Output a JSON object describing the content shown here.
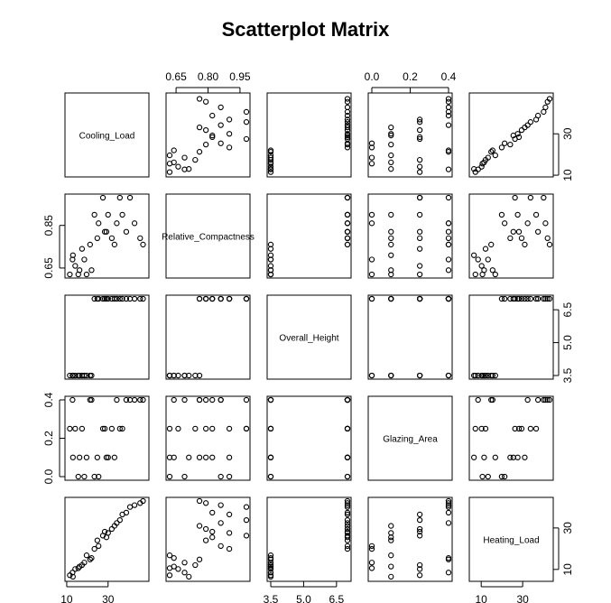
{
  "chart_data": {
    "type": "scatter",
    "title": "Scatterplot Matrix",
    "variables": [
      "Cooling_Load",
      "Relative_Compactness",
      "Overall_Height",
      "Glazing_Area",
      "Heating_Load"
    ],
    "axes": {
      "Cooling_Load": {
        "range": [
          10.9,
          48.0
        ],
        "ticks": [
          10,
          30
        ]
      },
      "Relative_Compactness": {
        "range": [
          0.62,
          0.98
        ],
        "ticks": [
          0.65,
          0.8,
          0.95
        ],
        "tick_labels_left": [
          "0.65",
          "0.85"
        ],
        "tick_labels_top": [
          "0.65",
          "0.80",
          "0.95"
        ]
      },
      "Overall_Height": {
        "range": [
          3.5,
          7.0
        ],
        "ticks": [
          3.5,
          5.0,
          6.5
        ]
      },
      "Glazing_Area": {
        "range": [
          0.0,
          0.4
        ],
        "ticks": [
          0.0,
          0.2,
          0.4
        ]
      },
      "Heating_Load": {
        "range": [
          6.0,
          43.0
        ],
        "ticks": [
          10,
          30
        ]
      }
    },
    "tick_labels": {
      "top_relative_compactness": [
        "0.65",
        "0.80",
        "0.95"
      ],
      "top_glazing_area": [
        "0.0",
        "0.2",
        "0.4"
      ],
      "left_relative_compactness": [
        "0.65",
        "0.85"
      ],
      "left_glazing_area": [
        "0.0",
        "0.2",
        "0.4"
      ],
      "right_cooling_load": [
        "10",
        "30"
      ],
      "right_overall_height": [
        "3.5",
        "5.0",
        "6.5"
      ],
      "right_heating_load": [
        "10",
        "30"
      ],
      "bottom_cooling_load": [
        "10",
        "30"
      ],
      "bottom_overall_height": [
        "3.5",
        "5.0",
        "6.5"
      ],
      "bottom_heating_load": [
        "10",
        "30"
      ]
    },
    "diagonal_labels": [
      "Cooling_Load",
      "Relative_Compactness",
      "Overall_Height",
      "Glazing_Area",
      "Heating_Load"
    ],
    "observations": [
      [
        15.6,
        0.62,
        3.5,
        0.0,
        10.6
      ],
      [
        16.2,
        0.64,
        3.5,
        0.1,
        11.4
      ],
      [
        14.1,
        0.66,
        3.5,
        0.25,
        10.2
      ],
      [
        12.8,
        0.69,
        3.5,
        0.4,
        8.5
      ],
      [
        13.0,
        0.71,
        3.5,
        0.1,
        6.5
      ],
      [
        17.4,
        0.74,
        3.5,
        0.25,
        12.1
      ],
      [
        21.3,
        0.76,
        3.5,
        0.4,
        14.8
      ],
      [
        11.5,
        0.62,
        3.5,
        0.25,
        7.2
      ],
      [
        18.5,
        0.69,
        3.5,
        0.0,
        13.3
      ],
      [
        22.0,
        0.64,
        3.5,
        0.4,
        15.5
      ],
      [
        24.8,
        0.79,
        7.0,
        0.1,
        24.0
      ],
      [
        28.4,
        0.82,
        7.0,
        0.25,
        28.2
      ],
      [
        34.2,
        0.86,
        7.0,
        0.4,
        32.4
      ],
      [
        36.9,
        0.9,
        7.0,
        0.25,
        36.5
      ],
      [
        40.6,
        0.98,
        7.0,
        0.4,
        40.1
      ],
      [
        33.1,
        0.76,
        7.0,
        0.1,
        31.0
      ],
      [
        25.4,
        0.86,
        7.0,
        0.0,
        21.3
      ],
      [
        38.8,
        0.82,
        7.0,
        0.4,
        37.4
      ],
      [
        45.5,
        0.79,
        7.0,
        0.4,
        42.0
      ],
      [
        30.0,
        0.9,
        7.0,
        0.1,
        27.6
      ],
      [
        27.5,
        0.98,
        7.0,
        0.25,
        26.3
      ],
      [
        42.8,
        0.86,
        7.0,
        0.4,
        41.0
      ],
      [
        31.8,
        0.79,
        7.0,
        0.25,
        29.5
      ],
      [
        19.6,
        0.62,
        3.5,
        0.1,
        16.8
      ],
      [
        46.9,
        0.76,
        7.0,
        0.4,
        43.0
      ],
      [
        29.2,
        0.82,
        7.0,
        0.1,
        25.5
      ],
      [
        35.7,
        0.98,
        7.0,
        0.25,
        33.8
      ],
      [
        23.4,
        0.9,
        7.0,
        0.0,
        19.9
      ]
    ]
  }
}
